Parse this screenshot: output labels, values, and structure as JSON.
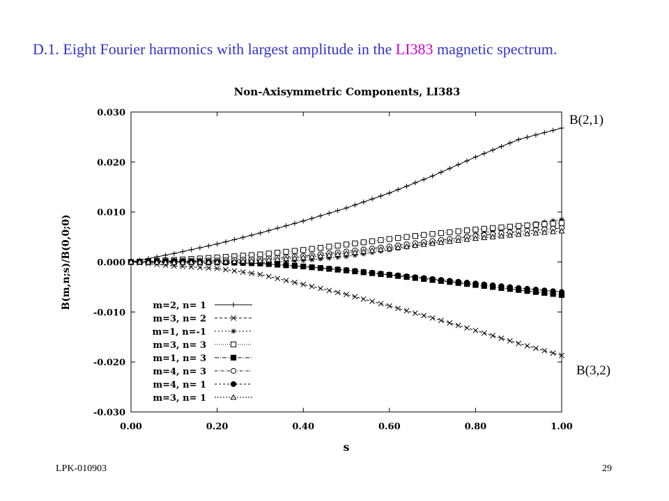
{
  "heading": {
    "prefix": "D.1. Eight Fourier harmonics with largest amplitude in the ",
    "highlight": "LI383",
    "suffix": " magnetic spectrum."
  },
  "annotations": {
    "top_right": "B(2,1)",
    "bottom_right": "B(3,2)"
  },
  "footer": {
    "left": "LPK-010903",
    "right": "29"
  },
  "colors": {
    "heading": "#3333cc",
    "highlight": "#cc00cc",
    "plot": "#000000"
  },
  "chart_data": {
    "type": "line",
    "title": "Non-Axisymmetric Components, LI383",
    "xlabel": "s",
    "ylabel": "B(m,n;s)/B(0,0;0)",
    "xlim": [
      0.0,
      1.0
    ],
    "ylim": [
      -0.03,
      0.03
    ],
    "xticks": [
      "0.00",
      "0.20",
      "0.40",
      "0.60",
      "0.80",
      "1.00"
    ],
    "yticks": [
      "-0.030",
      "-0.020",
      "-0.010",
      "0.000",
      "0.010",
      "0.020",
      "0.030"
    ],
    "legend_position": "bottom-left",
    "grid": false,
    "x": [
      0.0,
      0.1,
      0.2,
      0.3,
      0.4,
      0.5,
      0.6,
      0.7,
      0.8,
      0.9,
      1.0
    ],
    "series": [
      {
        "name": "m=2, n= 1",
        "marker": "plus",
        "dash": "",
        "values": [
          0.0,
          0.0017,
          0.0036,
          0.0058,
          0.0082,
          0.0108,
          0.0138,
          0.0172,
          0.021,
          0.0245,
          0.0268
        ]
      },
      {
        "name": "m=3, n= 2",
        "marker": "x",
        "dash": "4,3",
        "values": [
          0.0,
          -0.0008,
          -0.0013,
          -0.0025,
          -0.0045,
          -0.0065,
          -0.0088,
          -0.0112,
          -0.0137,
          -0.0163,
          -0.0187
        ]
      },
      {
        "name": "m=1, n=-1",
        "marker": "star",
        "dash": "2,3",
        "values": [
          0.0,
          -0.0002,
          -0.0003,
          -0.0002,
          0.0003,
          0.0011,
          0.0024,
          0.0038,
          0.0055,
          0.0072,
          0.0085
        ]
      },
      {
        "name": "m=3, n= 3",
        "marker": "square",
        "dash": "1,2",
        "values": [
          0.0,
          0.0004,
          0.0009,
          0.0015,
          0.0024,
          0.0035,
          0.0046,
          0.0056,
          0.0065,
          0.0072,
          0.0078
        ]
      },
      {
        "name": "m=1, n= 3",
        "marker": "fsquare",
        "dash": "6,2,1,2",
        "values": [
          0.0,
          0.0001,
          0.0,
          -0.0003,
          -0.0009,
          -0.0017,
          -0.0026,
          -0.0036,
          -0.0046,
          -0.0056,
          -0.0066
        ]
      },
      {
        "name": "m=4, n= 3",
        "marker": "circle",
        "dash": "4,2,1,2",
        "values": [
          0.0,
          0.0002,
          0.0003,
          0.0006,
          0.0012,
          0.0021,
          0.0031,
          0.0042,
          0.0052,
          0.0061,
          0.0068
        ]
      },
      {
        "name": "m=4, n= 1",
        "marker": "fcircle",
        "dash": "3,3",
        "values": [
          0.0,
          0.0001,
          0.0,
          -0.0003,
          -0.0009,
          -0.0016,
          -0.0025,
          -0.0034,
          -0.0043,
          -0.0052,
          -0.006
        ]
      },
      {
        "name": "m=3, n= 1",
        "marker": "triangle",
        "dash": "2,2",
        "values": [
          0.0,
          -0.0001,
          0.0,
          0.0003,
          0.0009,
          0.0017,
          0.0027,
          0.0037,
          0.0047,
          0.0055,
          0.0062
        ]
      }
    ]
  }
}
